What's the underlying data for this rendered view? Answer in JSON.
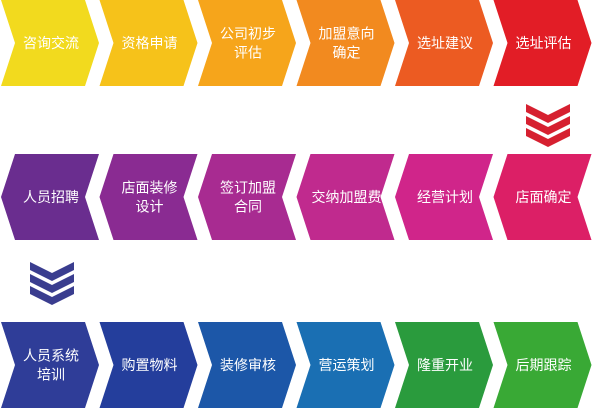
{
  "rows": [
    {
      "direction": "right",
      "steps": [
        {
          "lines": [
            "咨询交流"
          ],
          "color": "#f2da1e"
        },
        {
          "lines": [
            "资格申请"
          ],
          "color": "#f6c21a"
        },
        {
          "lines": [
            "公司初步",
            "评估"
          ],
          "color": "#f6a51b"
        },
        {
          "lines": [
            "加盟意向",
            "确定"
          ],
          "color": "#f28a1f"
        },
        {
          "lines": [
            "选址建议"
          ],
          "color": "#ec5b22"
        },
        {
          "lines": [
            "选址评估"
          ],
          "color": "#e21d26"
        }
      ]
    },
    {
      "direction": "left",
      "steps": [
        {
          "lines": [
            "人员招聘"
          ],
          "color": "#6a2d8f"
        },
        {
          "lines": [
            "店面装修",
            "设计"
          ],
          "color": "#8a2b92"
        },
        {
          "lines": [
            "签订加盟",
            "合同"
          ],
          "color": "#a82b91"
        },
        {
          "lines": [
            "交纳加盟费"
          ],
          "color": "#c02a8e"
        },
        {
          "lines": [
            "经营计划"
          ],
          "color": "#d0258a"
        },
        {
          "lines": [
            "店面确定"
          ],
          "color": "#dc1f66"
        }
      ]
    },
    {
      "direction": "right",
      "steps": [
        {
          "lines": [
            "人员系统",
            "培训"
          ],
          "color": "#2f3d98"
        },
        {
          "lines": [
            "购置物料"
          ],
          "color": "#243e9c"
        },
        {
          "lines": [
            "装修审核"
          ],
          "color": "#1c57a8"
        },
        {
          "lines": [
            "营运策划"
          ],
          "color": "#1a6fb3"
        },
        {
          "lines": [
            "隆重开业"
          ],
          "color": "#2a9b3d"
        },
        {
          "lines": [
            "后期跟踪"
          ],
          "color": "#39a935"
        }
      ]
    }
  ],
  "connectors": [
    {
      "name": "down-chevron-right",
      "color": "#d62030"
    },
    {
      "name": "down-chevron-left",
      "color": "#3a3d8f"
    }
  ]
}
